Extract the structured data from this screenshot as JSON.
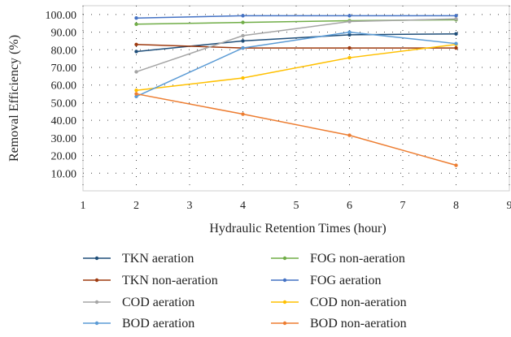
{
  "chart_data": {
    "type": "line",
    "title": "",
    "xlabel": "Hydraulic Retention Times (hour)",
    "ylabel": "Removal Efficiency (%)",
    "xlim": [
      1,
      9
    ],
    "ylim": [
      0,
      105
    ],
    "x_ticks": [
      "1",
      "2",
      "3",
      "4",
      "5",
      "6",
      "7",
      "8",
      "9"
    ],
    "y_ticks": [
      "10.00",
      "20.00",
      "30.00",
      "40.00",
      "50.00",
      "60.00",
      "70.00",
      "80.00",
      "90.00",
      "100.00"
    ],
    "grid": true,
    "legend_position": "bottom",
    "x": [
      2,
      4,
      6,
      8
    ],
    "series": [
      {
        "name": "TKN aeration",
        "color": "#1f4e79",
        "values": [
          79,
          85,
          88.5,
          89
        ]
      },
      {
        "name": "FOG non-aeration",
        "color": "#70ad47",
        "values": [
          94.5,
          95.5,
          96.5,
          97
        ]
      },
      {
        "name": "TKN non-aeration",
        "color": "#9e3a0f",
        "values": [
          83,
          81,
          81,
          81
        ]
      },
      {
        "name": "FOG aeration",
        "color": "#4472c4",
        "values": [
          98,
          99.3,
          99.3,
          99.3
        ]
      },
      {
        "name": "COD aeration",
        "color": "#a5a5a5",
        "values": [
          67.5,
          88,
          96,
          97.5
        ]
      },
      {
        "name": "COD non-aeration",
        "color": "#ffc000",
        "values": [
          57,
          64,
          75.5,
          83
        ]
      },
      {
        "name": "BOD aeration",
        "color": "#5b9bd5",
        "values": [
          53.5,
          81,
          90,
          83.5
        ]
      },
      {
        "name": "BOD non-aeration",
        "color": "#ed7d31",
        "values": [
          55,
          43.5,
          31.5,
          14.5
        ]
      }
    ]
  }
}
